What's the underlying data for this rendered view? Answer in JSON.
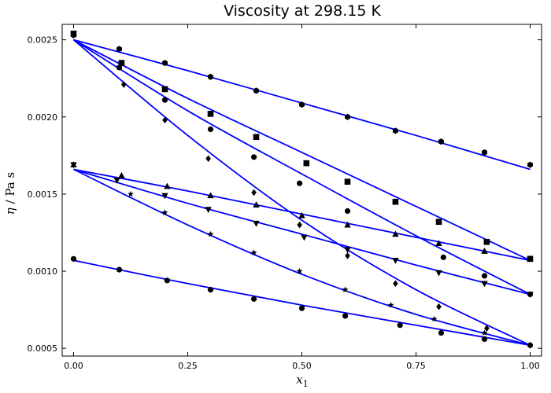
{
  "chart_data": {
    "type": "scatter",
    "title": "Viscosity at 298.15 K",
    "xlabel": "x",
    "xlabel_sub": "1",
    "ylabel_italic": "η",
    "ylabel_unit": " / Pa s",
    "xlim": [
      -0.025,
      1.025
    ],
    "ylim": [
      0.00045,
      0.0026
    ],
    "x_ticks": [
      0,
      0.25,
      0.5,
      0.75,
      1
    ],
    "x_tick_labels": [
      "0.00",
      "0.25",
      "0.50",
      "0.75",
      "1.00"
    ],
    "y_ticks": [
      0.0005,
      0.001,
      0.0015,
      0.002,
      0.0025
    ],
    "y_tick_labels": [
      "0.0005",
      "0.0010",
      "0.0015",
      "0.0020",
      "0.0025"
    ],
    "grid": false,
    "line_color": "#0000ff",
    "marker_color": "#000000",
    "series": [
      {
        "marker": "hexagon",
        "points": [
          [
            0,
            0.00253
          ],
          [
            0.1,
            0.00244
          ],
          [
            0.2,
            0.00235
          ],
          [
            0.3,
            0.00226
          ],
          [
            0.4,
            0.00217
          ],
          [
            0.5,
            0.00208
          ],
          [
            0.6,
            0.002
          ],
          [
            0.705,
            0.00191
          ],
          [
            0.805,
            0.00184
          ],
          [
            0.9,
            0.00177
          ],
          [
            1.0,
            0.00169
          ]
        ],
        "curve": [
          [
            0,
            0.0025
          ],
          [
            0.25,
            0.0023
          ],
          [
            0.5,
            0.00209
          ],
          [
            0.75,
            0.00188
          ],
          [
            1.0,
            0.00166
          ]
        ]
      },
      {
        "marker": "square",
        "points": [
          [
            0,
            0.00254
          ],
          [
            0.105,
            0.00235
          ],
          [
            0.2,
            0.00218
          ],
          [
            0.3,
            0.00202
          ],
          [
            0.4,
            0.00187
          ],
          [
            0.51,
            0.0017
          ],
          [
            0.6,
            0.00158
          ],
          [
            0.705,
            0.00145
          ],
          [
            0.8,
            0.00132
          ],
          [
            0.905,
            0.00119
          ],
          [
            1.0,
            0.00108
          ]
        ],
        "curve": [
          [
            0,
            0.0025
          ],
          [
            0.25,
            0.00212
          ],
          [
            0.5,
            0.00177
          ],
          [
            0.75,
            0.00142
          ],
          [
            1.0,
            0.00107
          ]
        ]
      },
      {
        "marker": "circle",
        "points": [
          [
            0.1,
            0.00232
          ],
          [
            0.2,
            0.00211
          ],
          [
            0.3,
            0.00192
          ],
          [
            0.395,
            0.00174
          ],
          [
            0.495,
            0.00157
          ],
          [
            0.6,
            0.00139
          ],
          [
            0.81,
            0.00109
          ],
          [
            0.9,
            0.00097
          ],
          [
            1.0,
            0.00085
          ]
        ],
        "curve": [
          [
            0,
            0.0025
          ],
          [
            0.25,
            0.00204
          ],
          [
            0.5,
            0.00163
          ],
          [
            0.75,
            0.00123
          ],
          [
            1.0,
            0.00085
          ]
        ]
      },
      {
        "marker": "diamond",
        "points": [
          [
            0.11,
            0.00221
          ],
          [
            0.2,
            0.00198
          ],
          [
            0.295,
            0.00173
          ],
          [
            0.395,
            0.00151
          ],
          [
            0.495,
            0.0013
          ],
          [
            0.6,
            0.0011
          ],
          [
            0.705,
            0.00092
          ],
          [
            0.8,
            0.00077
          ],
          [
            0.905,
            0.00063
          ],
          [
            1.0,
            0.00052
          ]
        ],
        "curve": [
          [
            0,
            0.0025
          ],
          [
            0.25,
            0.00188
          ],
          [
            0.5,
            0.00133
          ],
          [
            0.75,
            0.00088
          ],
          [
            1.0,
            0.00052
          ]
        ]
      },
      {
        "marker": "triangle-up",
        "points": [
          [
            0,
            0.00169
          ],
          [
            0.105,
            0.00162
          ],
          [
            0.205,
            0.00155
          ],
          [
            0.3,
            0.00149
          ],
          [
            0.4,
            0.00143
          ],
          [
            0.5,
            0.00136
          ],
          [
            0.6,
            0.0013
          ],
          [
            0.705,
            0.00124
          ],
          [
            0.8,
            0.00118
          ],
          [
            0.9,
            0.00113
          ],
          [
            1.0,
            0.00108
          ]
        ],
        "curve": [
          [
            0,
            0.00166
          ],
          [
            0.25,
            0.00152
          ],
          [
            0.5,
            0.00137
          ],
          [
            0.75,
            0.00122
          ],
          [
            1.0,
            0.00107
          ]
        ]
      },
      {
        "marker": "triangle-down",
        "points": [
          [
            0,
            0.00169
          ],
          [
            0.095,
            0.00159
          ],
          [
            0.2,
            0.00149
          ],
          [
            0.295,
            0.0014
          ],
          [
            0.4,
            0.00131
          ],
          [
            0.505,
            0.00122
          ],
          [
            0.6,
            0.00114
          ],
          [
            0.705,
            0.00107
          ],
          [
            0.8,
            0.00099
          ],
          [
            0.9,
            0.00092
          ],
          [
            1.0,
            0.00085
          ]
        ],
        "curve": [
          [
            0,
            0.00166
          ],
          [
            0.25,
            0.00144
          ],
          [
            0.5,
            0.00124
          ],
          [
            0.75,
            0.00104
          ],
          [
            1.0,
            0.00085
          ]
        ]
      },
      {
        "marker": "star",
        "points": [
          [
            0.125,
            0.0015
          ],
          [
            0.2,
            0.00138
          ],
          [
            0.3,
            0.00124
          ],
          [
            0.395,
            0.00112
          ],
          [
            0.495,
            0.001
          ],
          [
            0.595,
            0.00088
          ],
          [
            0.695,
            0.00078
          ],
          [
            0.79,
            0.00069
          ],
          [
            0.9,
            0.0006
          ]
        ],
        "curve": [
          [
            0,
            0.00166
          ],
          [
            0.25,
            0.0013
          ],
          [
            0.5,
            0.00098
          ],
          [
            0.75,
            0.00072
          ],
          [
            1.0,
            0.00052
          ]
        ]
      },
      {
        "marker": "circle",
        "points": [
          [
            0,
            0.00108
          ],
          [
            0.1,
            0.00101
          ],
          [
            0.205,
            0.00094
          ],
          [
            0.3,
            0.00088
          ],
          [
            0.395,
            0.00082
          ],
          [
            0.5,
            0.00076
          ],
          [
            0.595,
            0.00071
          ],
          [
            0.715,
            0.00065
          ],
          [
            0.805,
            0.0006
          ],
          [
            0.9,
            0.00056
          ],
          [
            1.0,
            0.00052
          ]
        ],
        "curve": [
          [
            0,
            0.00107
          ],
          [
            0.25,
            0.00092
          ],
          [
            0.5,
            0.00078
          ],
          [
            0.75,
            0.00065
          ],
          [
            1.0,
            0.00052
          ]
        ]
      }
    ]
  }
}
